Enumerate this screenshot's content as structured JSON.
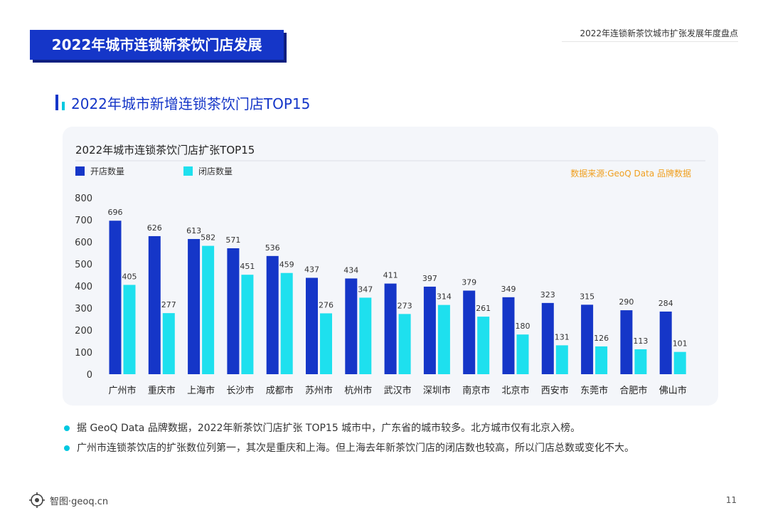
{
  "header": {
    "banner_title": "2022年城市连锁新茶饮门店发展",
    "top_right_text": "2022年连锁新茶饮城市扩张发展年度盘点"
  },
  "section": {
    "title": "2022年城市新增连锁茶饮门店TOP15"
  },
  "chart_data": {
    "type": "bar",
    "title": "2022年城市连锁茶饮门店扩张TOP15",
    "source_note": "数据来源:GeoQ Data 品牌数据",
    "categories": [
      "广州市",
      "重庆市",
      "上海市",
      "长沙市",
      "成都市",
      "苏州市",
      "杭州市",
      "武汉市",
      "深圳市",
      "南京市",
      "北京市",
      "西安市",
      "东莞市",
      "合肥市",
      "佛山市"
    ],
    "series": [
      {
        "name": "开店数量",
        "color": "#1536c8",
        "values": [
          696,
          626,
          613,
          571,
          536,
          437,
          434,
          411,
          397,
          379,
          349,
          323,
          315,
          290,
          284
        ]
      },
      {
        "name": "闭店数量",
        "color": "#1ee0ee",
        "values": [
          405,
          277,
          582,
          451,
          459,
          276,
          347,
          273,
          314,
          261,
          180,
          131,
          126,
          113,
          101
        ]
      }
    ],
    "yticks": [
      0,
      100,
      200,
      300,
      400,
      500,
      600,
      700,
      800
    ],
    "ylim": [
      0,
      800
    ],
    "legend_position": "top-left",
    "grid": false
  },
  "bullets": [
    "据 GeoQ Data 品牌数据，2022年新茶饮门店扩张 TOP15 城市中，广东省的城市较多。北方城市仅有北京入榜。",
    "广州市连锁茶饮店的扩张数位列第一，其次是重庆和上海。但上海去年新茶饮门店的闭店数也较高，所以门店总数或变化不大。"
  ],
  "footer": {
    "logo_text": "智图·geoq.cn",
    "page_number": "11"
  }
}
